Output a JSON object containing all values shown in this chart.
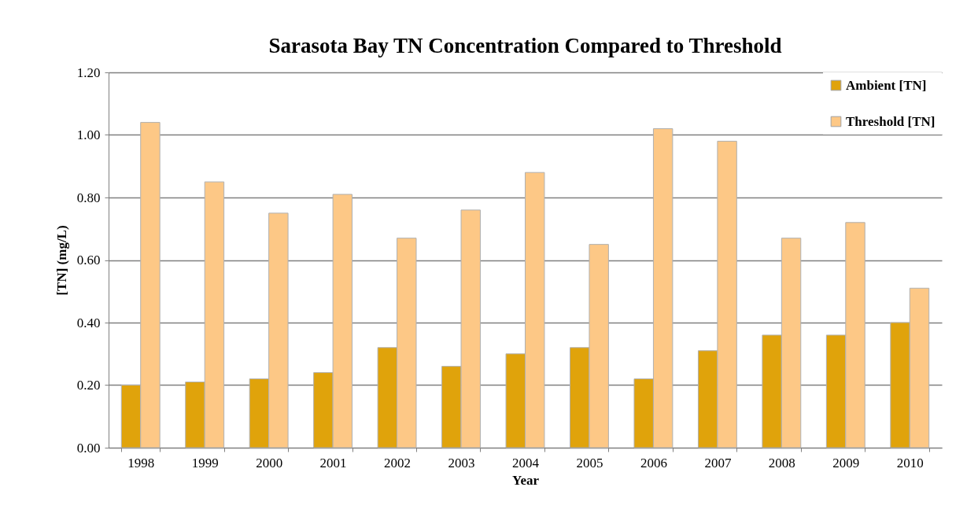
{
  "chart_data": {
    "type": "bar",
    "title": "Sarasota Bay TN Concentration Compared to Threshold",
    "xlabel": "Year",
    "ylabel": "[TN] (mg/L)",
    "categories": [
      "1998",
      "1999",
      "2000",
      "2001",
      "2002",
      "2003",
      "2004",
      "2005",
      "2006",
      "2007",
      "2008",
      "2009",
      "2010"
    ],
    "series": [
      {
        "name": "Ambient [TN]",
        "color": "#e0a30b",
        "values": [
          0.2,
          0.21,
          0.22,
          0.24,
          0.32,
          0.26,
          0.3,
          0.32,
          0.22,
          0.31,
          0.36,
          0.36,
          0.4
        ]
      },
      {
        "name": "Threshold [TN]",
        "color": "#fdc886",
        "values": [
          1.04,
          0.85,
          0.75,
          0.81,
          0.67,
          0.76,
          0.88,
          0.65,
          1.02,
          0.98,
          0.67,
          0.72,
          0.51
        ]
      }
    ],
    "ylim": [
      0,
      1.2
    ],
    "yticks": [
      {
        "value": 0,
        "label": "0.00"
      },
      {
        "value": 0.2,
        "label": "0.20"
      },
      {
        "value": 0.4,
        "label": "0.40"
      },
      {
        "value": 0.6,
        "label": "0.60"
      },
      {
        "value": 0.8,
        "label": "0.80"
      },
      {
        "value": 1,
        "label": "1.00"
      },
      {
        "value": 1.2,
        "label": "1.20"
      }
    ],
    "grid": "y",
    "legend": "top right"
  }
}
